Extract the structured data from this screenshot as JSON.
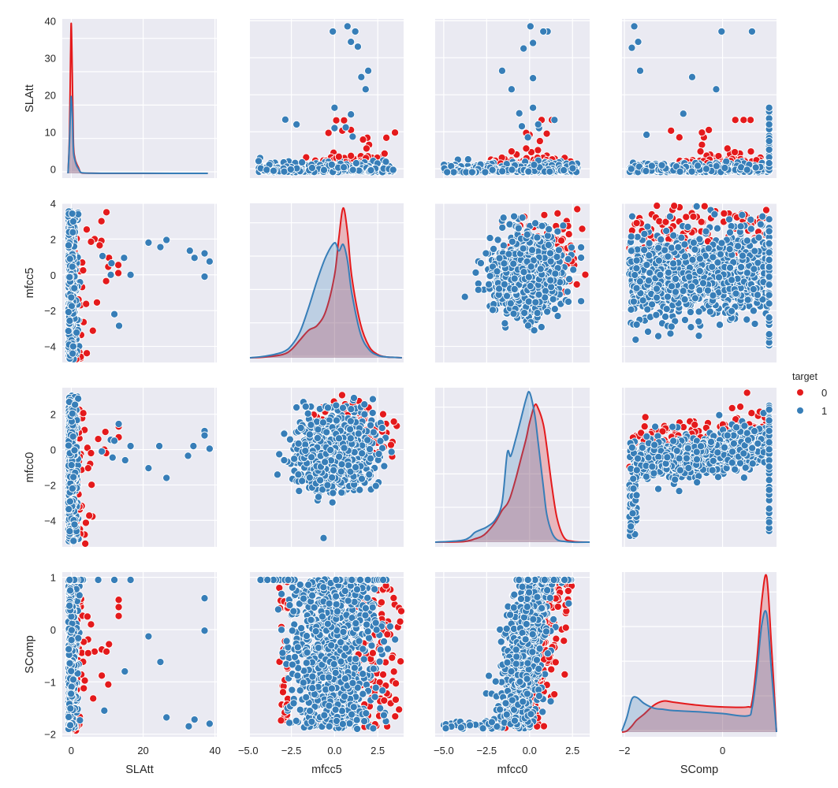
{
  "chart_data": {
    "type": "pairplot",
    "variables": [
      "SLAtt",
      "mfcc5",
      "mfcc0",
      "SComp"
    ],
    "hue": "target",
    "legend": {
      "title": "target",
      "placement": "right",
      "entries": [
        {
          "label": "0",
          "color": "#e41a1c"
        },
        {
          "label": "1",
          "color": "#377eb8"
        }
      ]
    },
    "grid": true,
    "background": "#eaeaf2",
    "axes": {
      "SLAtt": {
        "lim": [
          -2.5,
          40.5
        ],
        "ticks": [
          0,
          10,
          20,
          30,
          40
        ],
        "y_tick_labels": [
          "0",
          "10",
          "20",
          "30",
          "40"
        ],
        "x_tick_values": [
          0,
          20,
          40
        ],
        "x_tick_labels": [
          "0",
          "20",
          "40"
        ]
      },
      "mfcc5": {
        "lim": [
          -4.9,
          4.0
        ],
        "ticks": [
          -4,
          -2,
          0,
          2,
          4
        ],
        "y_tick_labels": [
          "−4",
          "−2",
          "0",
          "2",
          "4"
        ],
        "x_tick_values": [
          -5.0,
          -2.5,
          0.0,
          2.5
        ],
        "x_tick_labels": [
          "−5.0",
          "−2.5",
          "0.0",
          "2.5"
        ]
      },
      "mfcc0": {
        "lim": [
          -5.5,
          3.5
        ],
        "ticks": [
          -4,
          -2,
          0,
          2
        ],
        "y_tick_labels": [
          "−4",
          "−2",
          "0",
          "2"
        ],
        "x_tick_values": [
          -5.0,
          -2.5,
          0.0,
          2.5
        ],
        "x_tick_labels": [
          "−5.0",
          "−2.5",
          "0.0",
          "2.5"
        ]
      },
      "SComp": {
        "lim": [
          -2.05,
          1.1
        ],
        "ticks": [
          -2,
          -1,
          0,
          1
        ],
        "y_tick_labels": [
          "−2",
          "−1",
          "0",
          "1"
        ],
        "x_tick_values": [
          -2,
          0
        ],
        "x_tick_labels": [
          "−2",
          "0"
        ]
      }
    },
    "diag_kde": {
      "SLAtt": {
        "x": [
          -0.9,
          -0.5,
          -0.2,
          0.0,
          0.3,
          0.6,
          1.0,
          1.5,
          2.0,
          2.5,
          3.0,
          5.0,
          10,
          20,
          38
        ],
        "series": [
          {
            "name": "0",
            "values": [
              0,
              10,
              30,
              39,
              25,
              8,
              4,
              2.5,
              1.5,
              0.4,
              0.1,
              0.05,
              0,
              0,
              0
            ]
          },
          {
            "name": "1",
            "values": [
              0,
              8,
              17,
              20,
              15,
              6,
              3.5,
              2.0,
              1.2,
              0.4,
              0.15,
              0.05,
              0.02,
              0.02,
              0
            ]
          }
        ]
      },
      "mfcc5": {
        "x": [
          -4.9,
          -4.0,
          -3.0,
          -2.5,
          -2.0,
          -1.5,
          -1.0,
          -0.5,
          0.0,
          0.25,
          0.5,
          0.75,
          1.0,
          1.5,
          2.0,
          2.5,
          3.0,
          3.5,
          3.9
        ],
        "series": [
          {
            "name": "0",
            "values": [
              0,
              0.01,
              0.04,
              0.1,
              0.22,
              0.34,
              0.4,
              0.58,
              1.02,
              1.48,
              1.85,
              1.55,
              1.0,
              0.42,
              0.14,
              0.04,
              0.01,
              0.005,
              0
            ]
          },
          {
            "name": "1",
            "values": [
              0,
              0.02,
              0.07,
              0.15,
              0.32,
              0.62,
              0.96,
              1.25,
              1.42,
              1.32,
              1.4,
              1.2,
              0.8,
              0.3,
              0.1,
              0.03,
              0.01,
              0.005,
              0
            ]
          }
        ]
      },
      "mfcc0": {
        "x": [
          -5.5,
          -4.0,
          -3.5,
          -3.2,
          -2.8,
          -2.5,
          -2.0,
          -1.6,
          -1.3,
          -1.1,
          -0.8,
          -0.5,
          -0.2,
          0.0,
          0.3,
          0.5,
          0.8,
          1.0,
          1.3,
          1.6,
          2.0,
          2.5,
          3.5
        ],
        "series": [
          {
            "name": "0",
            "values": [
              0,
              0.005,
              0.02,
              0.04,
              0.07,
              0.12,
              0.25,
              0.4,
              0.48,
              0.58,
              0.8,
              1.05,
              1.3,
              1.5,
              1.72,
              1.68,
              1.48,
              1.2,
              0.7,
              0.3,
              0.06,
              0.01,
              0
            ]
          },
          {
            "name": "1",
            "values": [
              0,
              0.02,
              0.06,
              0.12,
              0.16,
              0.19,
              0.28,
              0.5,
              1.12,
              1.08,
              1.3,
              1.55,
              1.8,
              1.88,
              1.6,
              1.25,
              0.7,
              0.35,
              0.12,
              0.03,
              0.01,
              0,
              0
            ]
          }
        ]
      },
      "SComp": {
        "x": [
          -2.05,
          -1.95,
          -1.85,
          -1.75,
          -1.6,
          -1.4,
          -1.2,
          -1.0,
          -0.5,
          0.0,
          0.5,
          0.6,
          0.7,
          0.8,
          0.9,
          1.0,
          1.1
        ],
        "series": [
          {
            "name": "0",
            "values": [
              0,
              0.02,
              0.1,
              0.2,
              0.3,
              0.45,
              0.52,
              0.5,
              0.45,
              0.42,
              0.42,
              0.5,
              1.2,
              2.2,
              2.6,
              1.4,
              0
            ]
          },
          {
            "name": "1",
            "values": [
              0.02,
              0.25,
              0.55,
              0.58,
              0.48,
              0.4,
              0.38,
              0.36,
              0.34,
              0.31,
              0.27,
              0.4,
              1.0,
              1.8,
              1.98,
              1.0,
              0
            ]
          }
        ]
      }
    },
    "scatter_outliers": {
      "note": "Representative visible points read from panels; dense cores summarized as clouds",
      "SLAtt_vs_mfcc5": {
        "series": [
          {
            "name": "0",
            "points": [
              [
                9.8,
                3.5
              ],
              [
                8.4,
                3.0
              ],
              [
                6.5,
                2.0
              ],
              [
                5.5,
                1.85
              ],
              [
                8.4,
                1.9
              ],
              [
                7.9,
                1.65
              ],
              [
                10.5,
                0.95
              ],
              [
                13.1,
                0.55
              ],
              [
                13.1,
                0.1
              ],
              [
                10.3,
                0.45
              ],
              [
                9.7,
                -0.35
              ],
              [
                3.3,
                0.25
              ]
            ]
          },
          {
            "name": "1",
            "points": [
              [
                21.5,
                1.8
              ],
              [
                24.8,
                1.55
              ],
              [
                26.5,
                1.95
              ],
              [
                33.0,
                1.35
              ],
              [
                34.3,
                0.95
              ],
              [
                37.1,
                1.2
              ],
              [
                38.5,
                0.75
              ],
              [
                37.1,
                -0.1
              ],
              [
                8.7,
                1.05
              ],
              [
                11.2,
                0.65
              ],
              [
                14.7,
                0.95
              ],
              [
                11.0,
                0.0
              ],
              [
                16.5,
                0.0
              ],
              [
                12.0,
                -2.2
              ],
              [
                13.3,
                -2.85
              ]
            ]
          }
        ]
      },
      "SLAtt_vs_mfcc0": {
        "series": [
          {
            "name": "0",
            "points": [
              [
                9.5,
                1.0
              ],
              [
                13.2,
                1.3
              ],
              [
                13.2,
                0.7
              ],
              [
                7.5,
                0.6
              ],
              [
                4.5,
                0.1
              ],
              [
                5.5,
                -0.2
              ],
              [
                9.2,
                0.0
              ],
              [
                9.7,
                -0.2
              ],
              [
                4.7,
                -1.05
              ]
            ]
          },
          {
            "name": "1",
            "points": [
              [
                13.2,
                1.45
              ],
              [
                11.0,
                0.55
              ],
              [
                12.0,
                0.5
              ],
              [
                16.5,
                0.2
              ],
              [
                24.5,
                0.2
              ],
              [
                34.0,
                0.2
              ],
              [
                37.1,
                1.05
              ],
              [
                37.1,
                0.8
              ],
              [
                38.5,
                0.05
              ],
              [
                32.5,
                -0.35
              ],
              [
                21.5,
                -1.05
              ],
              [
                26.5,
                -1.6
              ],
              [
                15.0,
                -0.6
              ],
              [
                11.5,
                -0.45
              ],
              [
                8.5,
                -0.1
              ]
            ]
          }
        ]
      },
      "SLAtt_vs_SComp": {
        "series": [
          {
            "name": "0",
            "points": [
              [
                13.2,
                0.57
              ],
              [
                13.2,
                0.43
              ],
              [
                13.2,
                0.26
              ],
              [
                4.5,
                0.25
              ],
              [
                5.5,
                0.1
              ],
              [
                10.5,
                -0.28
              ],
              [
                8.5,
                -0.38
              ],
              [
                6.5,
                -0.42
              ],
              [
                9.8,
                -0.42
              ],
              [
                4.7,
                -0.45
              ],
              [
                8.5,
                -0.88
              ],
              [
                10.3,
                -1.05
              ]
            ]
          },
          {
            "name": "1",
            "points": [
              [
                37.1,
                0.6
              ],
              [
                37.1,
                -0.02
              ],
              [
                21.5,
                -0.13
              ],
              [
                24.8,
                -0.62
              ],
              [
                14.9,
                -0.8
              ],
              [
                9.2,
                -1.55
              ],
              [
                26.5,
                -1.68
              ],
              [
                34.3,
                -1.72
              ],
              [
                32.7,
                -1.85
              ],
              [
                38.5,
                -1.8
              ],
              [
                16.5,
                0.95
              ],
              [
                12.0,
                0.95
              ],
              [
                7.5,
                0.95
              ]
            ]
          }
        ]
      }
    },
    "scatter_clouds": {
      "mfcc5_vs_mfcc0": {
        "x_range": [
          -4.4,
          3.8
        ],
        "y_range": [
          -5.0,
          3.0
        ],
        "class0_edge": "upper-right"
      },
      "mfcc5_vs_SComp": {
        "x_range": [
          -4.4,
          3.6
        ],
        "y_range": [
          -1.9,
          0.96
        ],
        "class0_edge": "right"
      },
      "mfcc0_vs_SComp": {
        "x_range": [
          -5.0,
          3.0
        ],
        "y_range": [
          -1.9,
          0.96
        ],
        "class0_edge": "right"
      },
      "SComp_vs_mfcc0": {
        "x_range": [
          -1.9,
          0.96
        ],
        "y_range": [
          -5.0,
          3.0
        ],
        "class0_edge": "top"
      },
      "SComp_vs_mfcc5": {
        "x_range": [
          -1.9,
          0.96
        ],
        "y_range": [
          -4.4,
          3.5
        ],
        "class0_edge": "top"
      }
    }
  }
}
